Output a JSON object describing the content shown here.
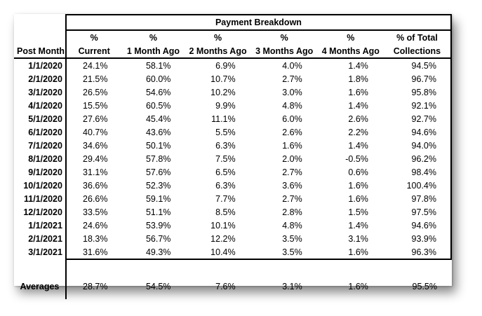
{
  "table": {
    "group_header": "Payment Breakdown",
    "col_row1": [
      "%",
      "%",
      "%",
      "%",
      "%",
      "% of Total"
    ],
    "col_row2": [
      "Current",
      "1 Month Ago",
      "2 Months Ago",
      "3 Months Ago",
      "4 Months Ago",
      "Collections"
    ],
    "first_col_header": "Post Month",
    "rows": [
      [
        "1/1/2020",
        "24.1%",
        "58.1%",
        "6.9%",
        "4.0%",
        "1.4%",
        "94.5%"
      ],
      [
        "2/1/2020",
        "21.5%",
        "60.0%",
        "10.7%",
        "2.7%",
        "1.8%",
        "96.7%"
      ],
      [
        "3/1/2020",
        "26.5%",
        "54.6%",
        "10.2%",
        "3.0%",
        "1.6%",
        "95.8%"
      ],
      [
        "4/1/2020",
        "15.5%",
        "60.5%",
        "9.9%",
        "4.8%",
        "1.4%",
        "92.1%"
      ],
      [
        "5/1/2020",
        "27.6%",
        "45.4%",
        "11.1%",
        "6.0%",
        "2.6%",
        "92.7%"
      ],
      [
        "6/1/2020",
        "40.7%",
        "43.6%",
        "5.5%",
        "2.6%",
        "2.2%",
        "94.6%"
      ],
      [
        "7/1/2020",
        "34.6%",
        "50.1%",
        "6.3%",
        "1.6%",
        "1.4%",
        "94.0%"
      ],
      [
        "8/1/2020",
        "29.4%",
        "57.8%",
        "7.5%",
        "2.0%",
        "-0.5%",
        "96.2%"
      ],
      [
        "9/1/2020",
        "31.1%",
        "57.6%",
        "6.5%",
        "2.7%",
        "0.6%",
        "98.4%"
      ],
      [
        "10/1/2020",
        "36.6%",
        "52.3%",
        "6.3%",
        "3.6%",
        "1.6%",
        "100.4%"
      ],
      [
        "11/1/2020",
        "26.6%",
        "59.1%",
        "7.7%",
        "2.7%",
        "1.6%",
        "97.8%"
      ],
      [
        "12/1/2020",
        "33.5%",
        "51.1%",
        "8.5%",
        "2.8%",
        "1.5%",
        "97.5%"
      ],
      [
        "1/1/2021",
        "24.6%",
        "53.9%",
        "10.1%",
        "4.8%",
        "1.4%",
        "94.6%"
      ],
      [
        "2/1/2021",
        "18.3%",
        "56.7%",
        "12.2%",
        "3.5%",
        "3.1%",
        "93.9%"
      ],
      [
        "3/1/2021",
        "31.6%",
        "49.3%",
        "10.4%",
        "3.5%",
        "1.6%",
        "96.3%"
      ]
    ],
    "averages": [
      "Averages",
      "28.7%",
      "54.5%",
      "7.6%",
      "3.1%",
      "1.6%",
      "95.5%"
    ]
  }
}
